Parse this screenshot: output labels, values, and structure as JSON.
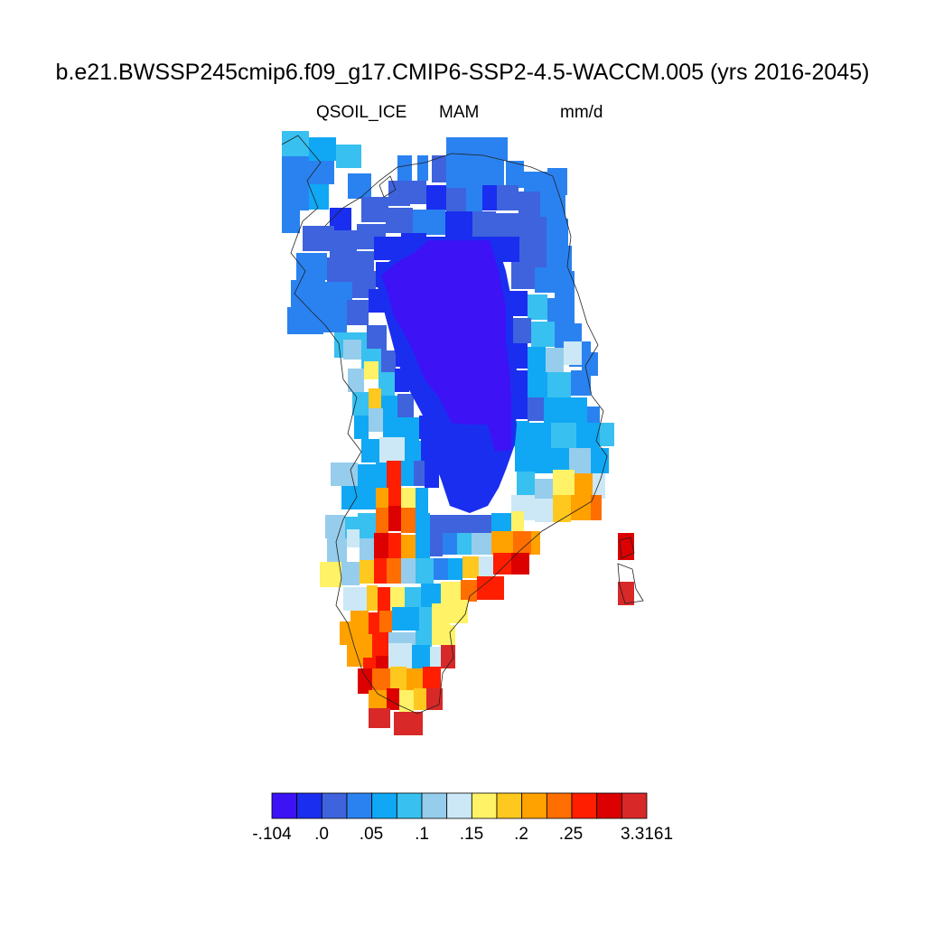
{
  "title": "b.e21.BWSSP245cmip6.f09_g17.CMIP6-SSP2-4.5-WACCM.005 (yrs 2016-2045)",
  "variable": "QSOIL_ICE",
  "season": "MAM",
  "units": "mm/d",
  "colorbar": {
    "colors": [
      "#3d12f5",
      "#1a2ef0",
      "#3e63dd",
      "#2a82f0",
      "#10a8f4",
      "#38c0f0",
      "#96cdec",
      "#cce8f6",
      "#fff266",
      "#ffc81e",
      "#ffa200",
      "#ff6e00",
      "#ff1e00",
      "#dc0000",
      "#d82828"
    ],
    "labels": [
      "-.104",
      ".0",
      ".05",
      ".1",
      ".15",
      ".2",
      ".25",
      "3.3161"
    ]
  }
}
